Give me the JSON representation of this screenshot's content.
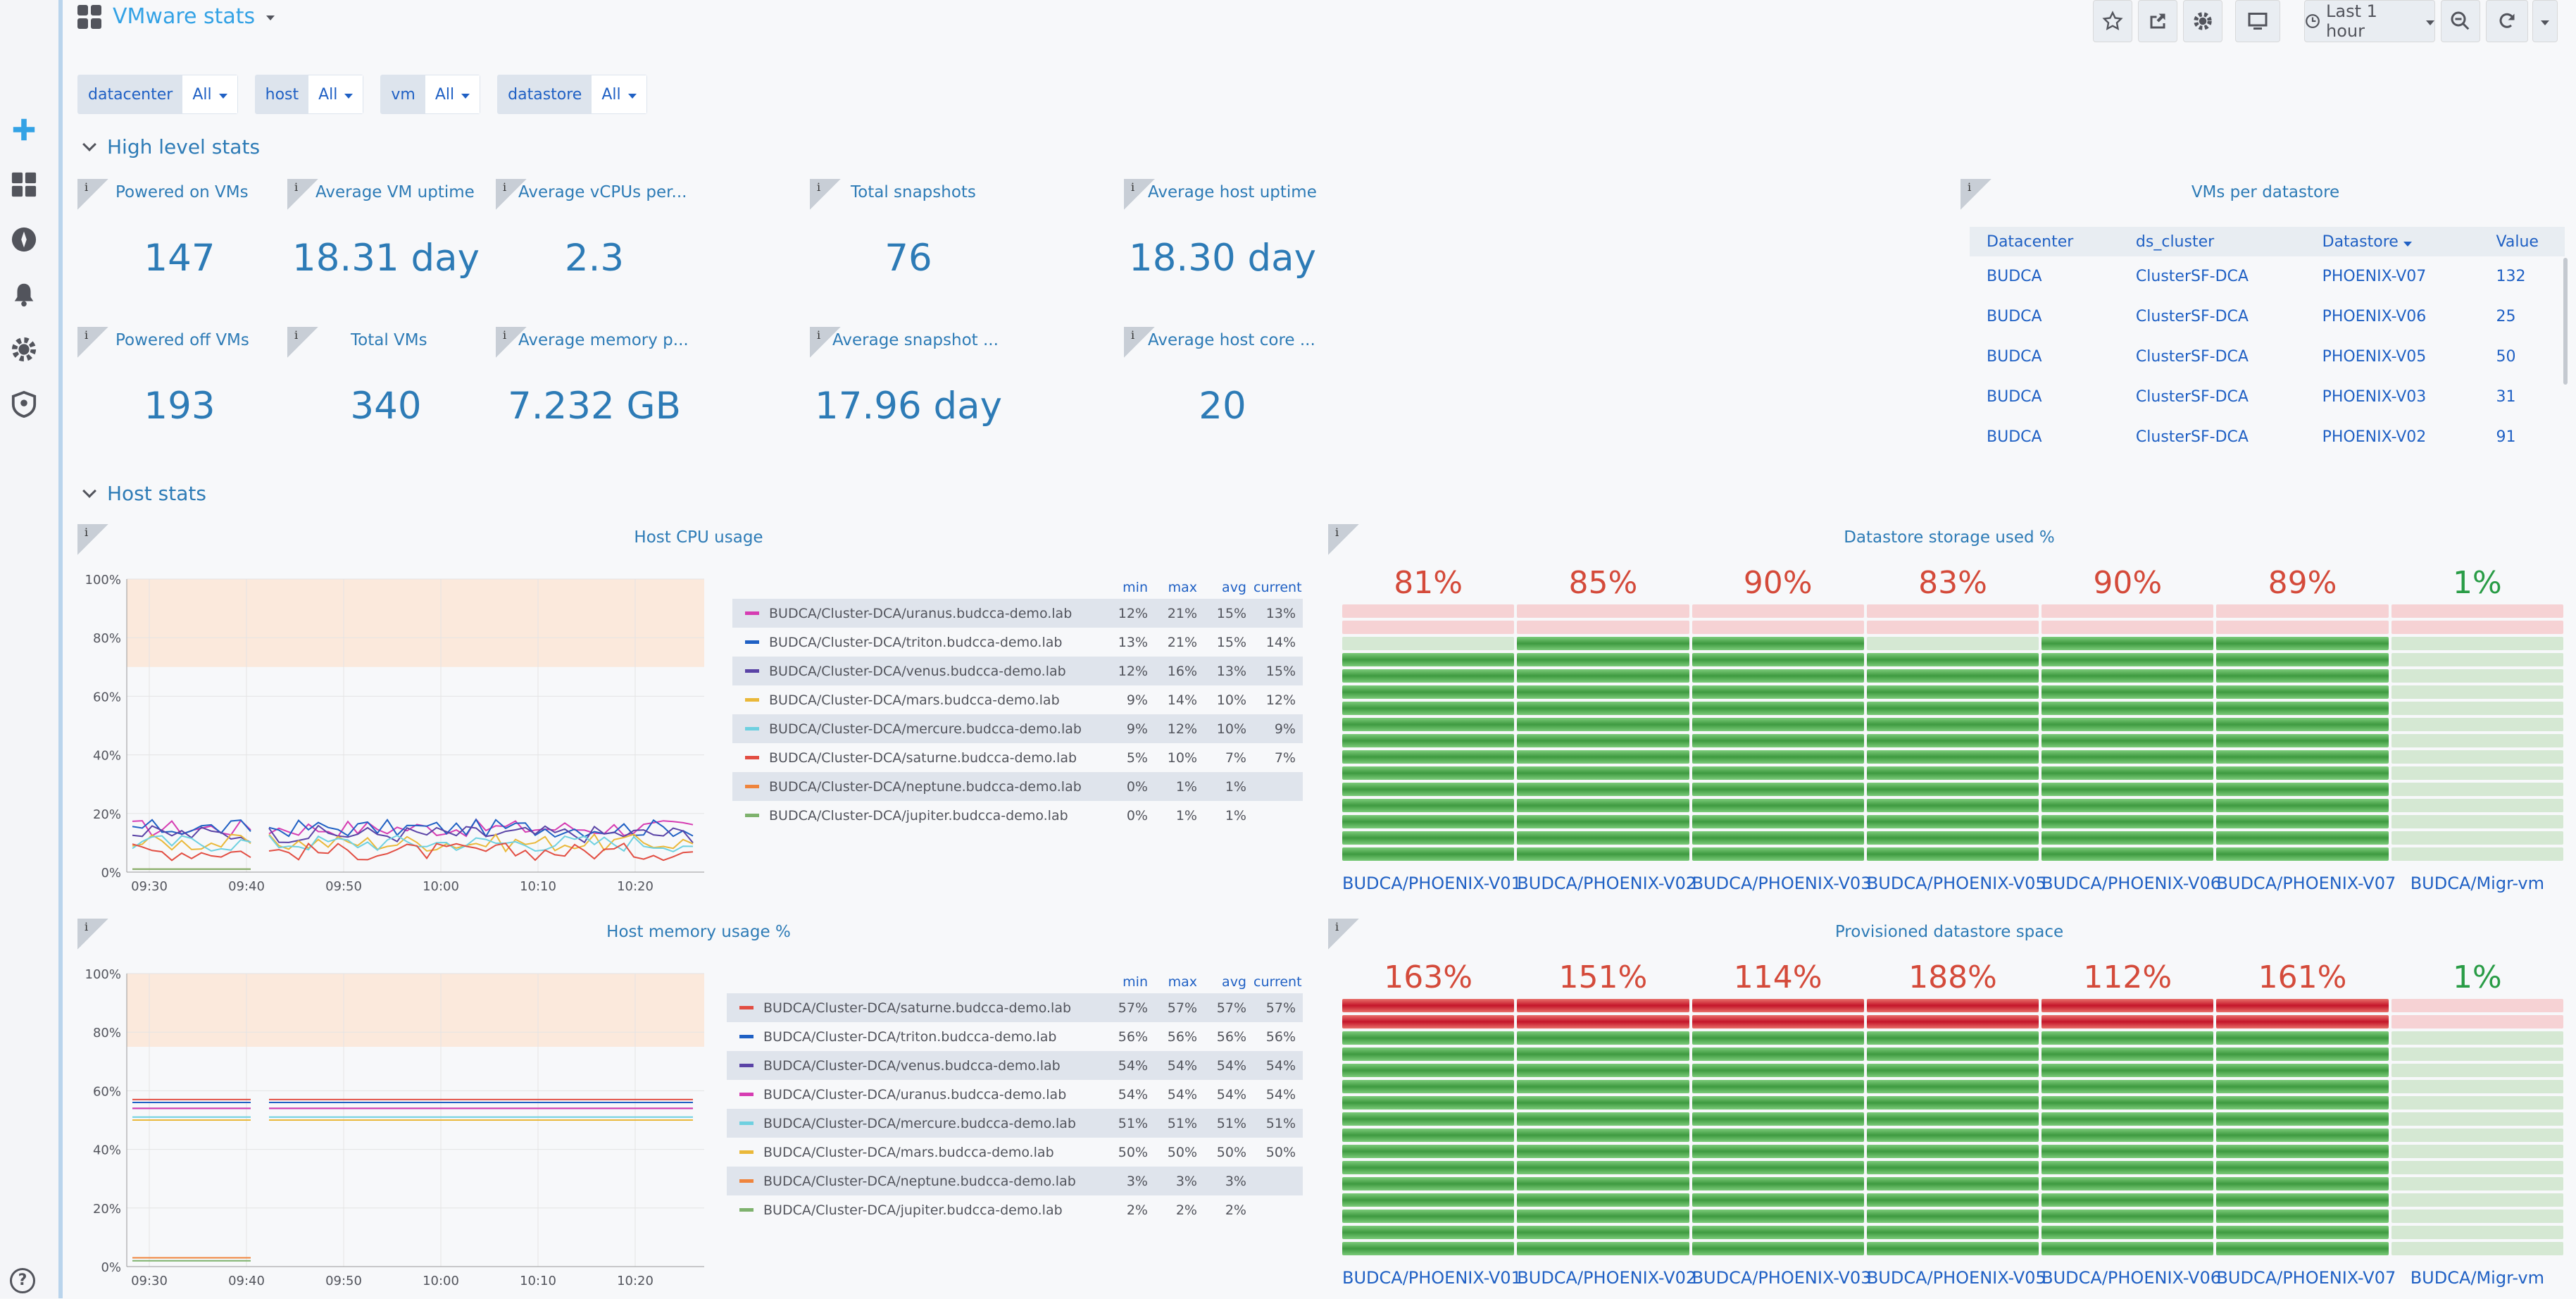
{
  "dashboard": {
    "title": "VMware stats",
    "time_range": "Last 1 hour"
  },
  "variables": [
    {
      "label": "datacenter",
      "value": "All"
    },
    {
      "label": "host",
      "value": "All"
    },
    {
      "label": "vm",
      "value": "All"
    },
    {
      "label": "datastore",
      "value": "All"
    }
  ],
  "rows": {
    "high_level": "High level stats",
    "host": "Host stats"
  },
  "stats": [
    {
      "title": "Powered on VMs",
      "value": "147"
    },
    {
      "title": "Average VM uptime",
      "value": "18.31 day"
    },
    {
      "title": "Average vCPUs per...",
      "value": "2.3"
    },
    {
      "title": "Total snapshots",
      "value": "76"
    },
    {
      "title": "Average host uptime",
      "value": "18.30 day"
    },
    {
      "title": "Powered off VMs",
      "value": "193"
    },
    {
      "title": "Total VMs",
      "value": "340"
    },
    {
      "title": "Average memory p...",
      "value": "7.232 GB"
    },
    {
      "title": "Average snapshot ...",
      "value": "17.96 day"
    },
    {
      "title": "Average host core ...",
      "value": "20"
    }
  ],
  "datastore_table": {
    "title": "VMs per datastore",
    "headers": [
      "Datacenter",
      "ds_cluster",
      "Datastore",
      "Value"
    ],
    "rows": [
      [
        "BUDCA",
        "ClusterSF-DCA",
        "PHOENIX-V07",
        "132"
      ],
      [
        "BUDCA",
        "ClusterSF-DCA",
        "PHOENIX-V06",
        "25"
      ],
      [
        "BUDCA",
        "ClusterSF-DCA",
        "PHOENIX-V05",
        "50"
      ],
      [
        "BUDCA",
        "ClusterSF-DCA",
        "PHOENIX-V03",
        "31"
      ],
      [
        "BUDCA",
        "ClusterSF-DCA",
        "PHOENIX-V02",
        "91"
      ]
    ]
  },
  "legend_headers": [
    "min",
    "max",
    "avg",
    "current"
  ],
  "chart_data": [
    {
      "type": "line",
      "title": "Host CPU usage",
      "x": [
        "09:30",
        "09:40",
        "09:50",
        "10:00",
        "10:10",
        "10:20"
      ],
      "y_ticks": [
        "100%",
        "80%",
        "60%",
        "40%",
        "20%",
        "0%"
      ],
      "ylim": [
        0,
        100
      ],
      "thresholds": [
        70,
        100
      ],
      "series": [
        {
          "name": "BUDCA/Cluster-DCA/uranus.budcca-demo.lab",
          "color": "#d63cb2",
          "min": "12%",
          "max": "21%",
          "avg": "15%",
          "current": "13%",
          "level": 15
        },
        {
          "name": "BUDCA/Cluster-DCA/triton.budcca-demo.lab",
          "color": "#1f60c4",
          "min": "13%",
          "max": "21%",
          "avg": "15%",
          "current": "14%",
          "level": 15
        },
        {
          "name": "BUDCA/Cluster-DCA/venus.budcca-demo.lab",
          "color": "#5a43a6",
          "min": "12%",
          "max": "16%",
          "avg": "13%",
          "current": "15%",
          "level": 13
        },
        {
          "name": "BUDCA/Cluster-DCA/mars.budcca-demo.lab",
          "color": "#eab839",
          "min": "9%",
          "max": "14%",
          "avg": "10%",
          "current": "12%",
          "level": 10
        },
        {
          "name": "BUDCA/Cluster-DCA/mercure.budcca-demo.lab",
          "color": "#6ed0e0",
          "min": "9%",
          "max": "12%",
          "avg": "10%",
          "current": "9%",
          "level": 10
        },
        {
          "name": "BUDCA/Cluster-DCA/saturne.budcca-demo.lab",
          "color": "#e24d42",
          "min": "5%",
          "max": "10%",
          "avg": "7%",
          "current": "7%",
          "level": 7
        },
        {
          "name": "BUDCA/Cluster-DCA/neptune.budcca-demo.lab",
          "color": "#ef843c",
          "min": "0%",
          "max": "1%",
          "avg": "1%",
          "current": "",
          "level": 1
        },
        {
          "name": "BUDCA/Cluster-DCA/jupiter.budcca-demo.lab",
          "color": "#7eb26d",
          "min": "0%",
          "max": "1%",
          "avg": "1%",
          "current": "",
          "level": 1
        }
      ]
    },
    {
      "type": "line",
      "title": "Host memory usage %",
      "x": [
        "09:30",
        "09:40",
        "09:50",
        "10:00",
        "10:10",
        "10:20"
      ],
      "y_ticks": [
        "100%",
        "80%",
        "60%",
        "40%",
        "20%",
        "0%"
      ],
      "ylim": [
        0,
        100
      ],
      "thresholds": [
        75,
        100
      ],
      "series": [
        {
          "name": "BUDCA/Cluster-DCA/saturne.budcca-demo.lab",
          "color": "#e24d42",
          "min": "57%",
          "max": "57%",
          "avg": "57%",
          "current": "57%",
          "level": 57
        },
        {
          "name": "BUDCA/Cluster-DCA/triton.budcca-demo.lab",
          "color": "#1f60c4",
          "min": "56%",
          "max": "56%",
          "avg": "56%",
          "current": "56%",
          "level": 56
        },
        {
          "name": "BUDCA/Cluster-DCA/venus.budcca-demo.lab",
          "color": "#5a43a6",
          "min": "54%",
          "max": "54%",
          "avg": "54%",
          "current": "54%",
          "level": 54
        },
        {
          "name": "BUDCA/Cluster-DCA/uranus.budcca-demo.lab",
          "color": "#d63cb2",
          "min": "54%",
          "max": "54%",
          "avg": "54%",
          "current": "54%",
          "level": 54
        },
        {
          "name": "BUDCA/Cluster-DCA/mercure.budcca-demo.lab",
          "color": "#6ed0e0",
          "min": "51%",
          "max": "51%",
          "avg": "51%",
          "current": "51%",
          "level": 51
        },
        {
          "name": "BUDCA/Cluster-DCA/mars.budcca-demo.lab",
          "color": "#eab839",
          "min": "50%",
          "max": "50%",
          "avg": "50%",
          "current": "50%",
          "level": 50
        },
        {
          "name": "BUDCA/Cluster-DCA/neptune.budcca-demo.lab",
          "color": "#ef843c",
          "min": "3%",
          "max": "3%",
          "avg": "3%",
          "current": "",
          "level": 3
        },
        {
          "name": "BUDCA/Cluster-DCA/jupiter.budcca-demo.lab",
          "color": "#7eb26d",
          "min": "2%",
          "max": "2%",
          "avg": "2%",
          "current": "",
          "level": 2
        }
      ]
    },
    {
      "type": "bar",
      "title": "Datastore storage used %",
      "categories": [
        "BUDCA/PHOENIX-V01",
        "BUDCA/PHOENIX-V02",
        "BUDCA/PHOENIX-V03",
        "BUDCA/PHOENIX-V05",
        "BUDCA/PHOENIX-V06",
        "BUDCA/PHOENIX-V07",
        "BUDCA/Migr-vm"
      ],
      "values": [
        81,
        85,
        90,
        83,
        90,
        89,
        1
      ],
      "labels": [
        "81%",
        "85%",
        "90%",
        "83%",
        "90%",
        "89%",
        "1%"
      ]
    },
    {
      "type": "bar",
      "title": "Provisioned datastore space",
      "categories": [
        "BUDCA/PHOENIX-V01",
        "BUDCA/PHOENIX-V02",
        "BUDCA/PHOENIX-V03",
        "BUDCA/PHOENIX-V05",
        "BUDCA/PHOENIX-V06",
        "BUDCA/PHOENIX-V07",
        "BUDCA/Migr-vm"
      ],
      "values": [
        163,
        151,
        114,
        188,
        112,
        161,
        1
      ],
      "labels": [
        "163%",
        "151%",
        "114%",
        "188%",
        "112%",
        "161%",
        "1%"
      ]
    }
  ],
  "colors": {
    "accent": "#2d7bb6",
    "red": "#d44a3a",
    "green": "#299c46"
  }
}
